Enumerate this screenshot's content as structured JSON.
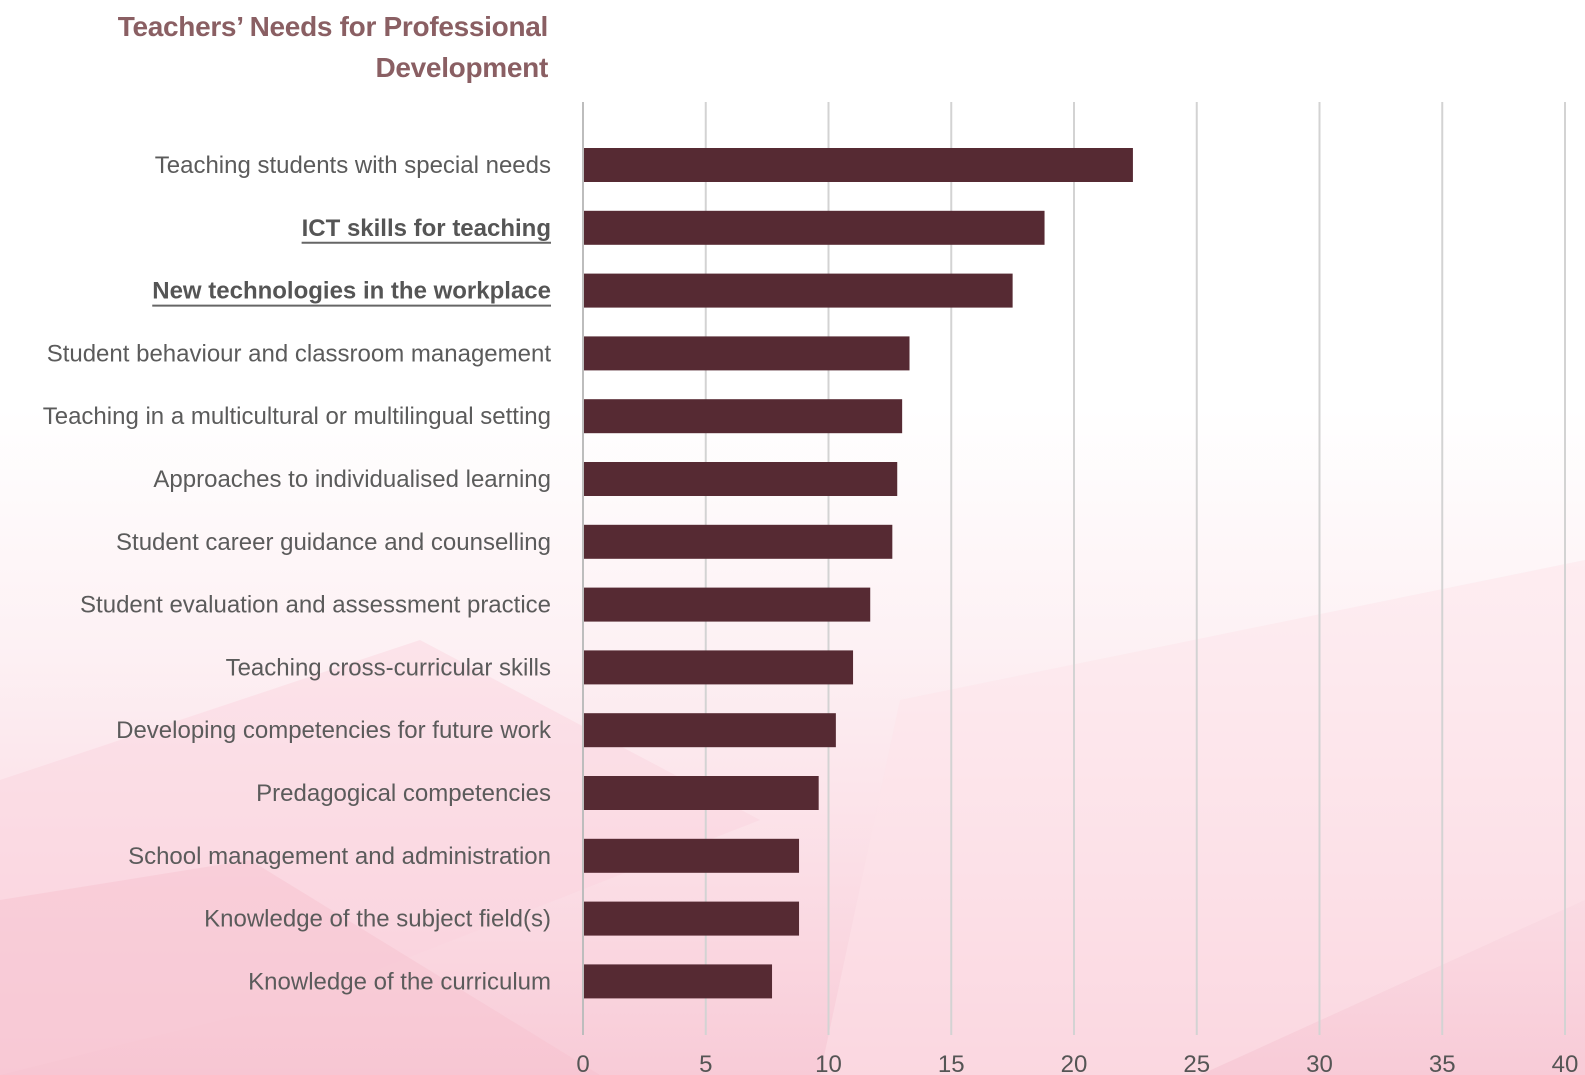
{
  "chart_data": {
    "type": "bar",
    "orientation": "horizontal",
    "title": "Teachers’ Needs for Professional Development",
    "xlabel": "",
    "ylabel": "",
    "xlim": [
      0,
      40
    ],
    "x_ticks": [
      "0",
      "5",
      "10",
      "15",
      "20",
      "25",
      "30",
      "35",
      "40"
    ],
    "grid": "vertical",
    "bar_color": "#562a33",
    "categories": [
      "Teaching students with special needs",
      "ICT skills for teaching",
      "New technologies in the workplace",
      "Student behaviour and classroom management",
      "Teaching in a multicultural or multilingual setting",
      "Approaches to individualised learning",
      "Student career guidance and counselling",
      "Student evaluation and assessment practice",
      "Teaching cross-curricular skills",
      "Developing competencies for future work",
      "Predagogical competencies",
      "School management and administration",
      "Knowledge of the subject field(s)",
      "Knowledge of the curriculum"
    ],
    "highlighted_categories": [
      "ICT skills for teaching",
      "New technologies in the workplace"
    ],
    "values": [
      22.4,
      18.8,
      17.5,
      13.3,
      13.0,
      12.8,
      12.6,
      11.7,
      11.0,
      10.3,
      9.6,
      8.8,
      8.8,
      7.7
    ]
  }
}
